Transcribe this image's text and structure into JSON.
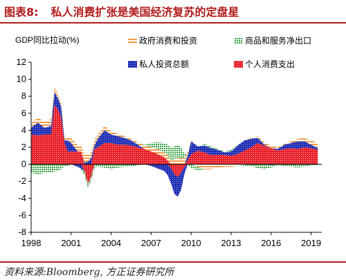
{
  "header": {
    "prefix": "图表8:",
    "title": "私人消费扩张是美国经济复苏的定盘星"
  },
  "source": "资料来源:Bloomberg, 方正证券研究所",
  "colors": {
    "brand": "#b21b1b",
    "consumption": "#e8202a",
    "investment": "#1f2fb5",
    "government": "#f39a45",
    "net_exports": "#2e9e3d"
  },
  "chart_data": {
    "type": "area",
    "title": "私人消费扩张是美国经济复苏的定盘星",
    "ylabel": "GDP同比拉动(%)",
    "xlabel": "",
    "ylim": [
      -8,
      12
    ],
    "yticks": [
      "-8",
      "-6",
      "-4",
      "-2",
      "0",
      "2",
      "4",
      "6",
      "8",
      "10",
      "12"
    ],
    "xlim": [
      1998,
      2019.8
    ],
    "xticks": [
      "1998",
      "2001",
      "2004",
      "2007",
      "2010",
      "2013",
      "2016",
      "2019"
    ],
    "legend_position": "top",
    "legend": [
      {
        "name": "政府消费和投资",
        "key": "government",
        "pattern": "stripes-orange"
      },
      {
        "name": "商品和服务净出口",
        "key": "net_exports",
        "pattern": "dots-green"
      },
      {
        "name": "私人投资总额",
        "key": "investment",
        "pattern": "dots-blue"
      },
      {
        "name": "个人消费支出",
        "key": "consumption",
        "pattern": "dots-red"
      }
    ],
    "x": [
      1998.0,
      1998.5,
      1999.0,
      1999.5,
      1999.75,
      2000.0,
      2000.25,
      2000.5,
      2000.75,
      2001.0,
      2001.5,
      2001.75,
      2002.0,
      2002.25,
      2002.5,
      2002.75,
      2003.0,
      2003.5,
      2004.0,
      2004.5,
      2005.0,
      2005.5,
      2006.0,
      2006.5,
      2007.0,
      2007.5,
      2008.0,
      2008.25,
      2008.5,
      2008.75,
      2009.0,
      2009.25,
      2009.5,
      2009.75,
      2010.0,
      2010.5,
      2011.0,
      2011.5,
      2012.0,
      2012.5,
      2013.0,
      2013.5,
      2014.0,
      2014.5,
      2015.0,
      2015.5,
      2016.0,
      2016.5,
      2017.0,
      2017.5,
      2018.0,
      2018.5,
      2019.0,
      2019.5
    ],
    "series": [
      {
        "name": "个人消费支出",
        "key": "consumption",
        "values": [
          3.5,
          3.4,
          3.5,
          3.5,
          7.0,
          6.5,
          5.5,
          2.5,
          1.5,
          1.5,
          1.5,
          1.5,
          -0.8,
          -2.3,
          -1.5,
          1.8,
          2.0,
          2.5,
          2.5,
          2.3,
          2.3,
          2.2,
          2.0,
          1.8,
          1.5,
          1.2,
          0.8,
          0.4,
          -0.5,
          -1.2,
          -1.5,
          -1.0,
          -0.3,
          0.5,
          1.2,
          1.6,
          1.4,
          1.1,
          1.1,
          1.1,
          1.0,
          1.2,
          1.6,
          2.0,
          2.5,
          2.2,
          1.9,
          1.6,
          1.8,
          1.9,
          1.8,
          2.0,
          1.9,
          1.7
        ]
      },
      {
        "name": "私人投资总额",
        "key": "investment",
        "values": [
          0.8,
          1.5,
          0.8,
          1.0,
          1.5,
          1.3,
          1.3,
          0.3,
          1.3,
          1.0,
          -0.3,
          -0.5,
          0.2,
          0.3,
          0.7,
          0.4,
          1.0,
          1.5,
          1.0,
          1.0,
          0.8,
          0.6,
          0.3,
          0.0,
          -0.2,
          -0.5,
          -0.8,
          -1.3,
          -1.8,
          -2.3,
          -2.3,
          -2.0,
          -0.8,
          0.5,
          1.5,
          0.5,
          0.8,
          0.8,
          0.6,
          0.3,
          0.5,
          1.0,
          1.2,
          1.0,
          0.6,
          0.1,
          -0.1,
          0.2,
          0.5,
          0.6,
          0.9,
          0.7,
          0.4,
          0.2
        ]
      },
      {
        "name": "政府消费和投资",
        "key": "government",
        "values": [
          0.5,
          0.6,
          0.7,
          0.8,
          0.6,
          0.5,
          0.4,
          0.4,
          0.4,
          0.6,
          0.7,
          0.8,
          0.9,
          0.8,
          0.7,
          0.6,
          0.5,
          0.5,
          0.4,
          0.3,
          0.2,
          0.2,
          0.3,
          0.4,
          0.5,
          0.6,
          0.6,
          0.6,
          0.5,
          0.6,
          0.7,
          0.8,
          0.7,
          0.4,
          0.1,
          -0.3,
          -0.6,
          -0.6,
          -0.4,
          -0.3,
          -0.3,
          -0.2,
          -0.1,
          0.1,
          0.2,
          0.3,
          0.3,
          0.2,
          0.1,
          0.2,
          0.3,
          0.4,
          0.5,
          0.6
        ]
      },
      {
        "name": "商品和服务净出口",
        "key": "net_exports",
        "values": [
          -1.0,
          -1.2,
          -1.0,
          -1.0,
          -0.8,
          -0.8,
          -0.6,
          -0.2,
          -0.2,
          0.0,
          0.0,
          -0.2,
          -0.5,
          -0.5,
          -0.5,
          -0.4,
          -0.3,
          -0.4,
          -0.6,
          -0.4,
          -0.3,
          -0.3,
          -0.1,
          0.1,
          0.5,
          0.8,
          1.1,
          1.3,
          1.4,
          1.5,
          1.6,
          1.2,
          0.5,
          0.0,
          -0.5,
          -0.4,
          0.2,
          0.2,
          0.1,
          0.1,
          0.2,
          0.1,
          -0.2,
          -0.2,
          -0.5,
          -0.6,
          -0.3,
          -0.1,
          -0.2,
          -0.3,
          -0.4,
          -0.3,
          -0.1,
          -0.1
        ]
      }
    ]
  }
}
